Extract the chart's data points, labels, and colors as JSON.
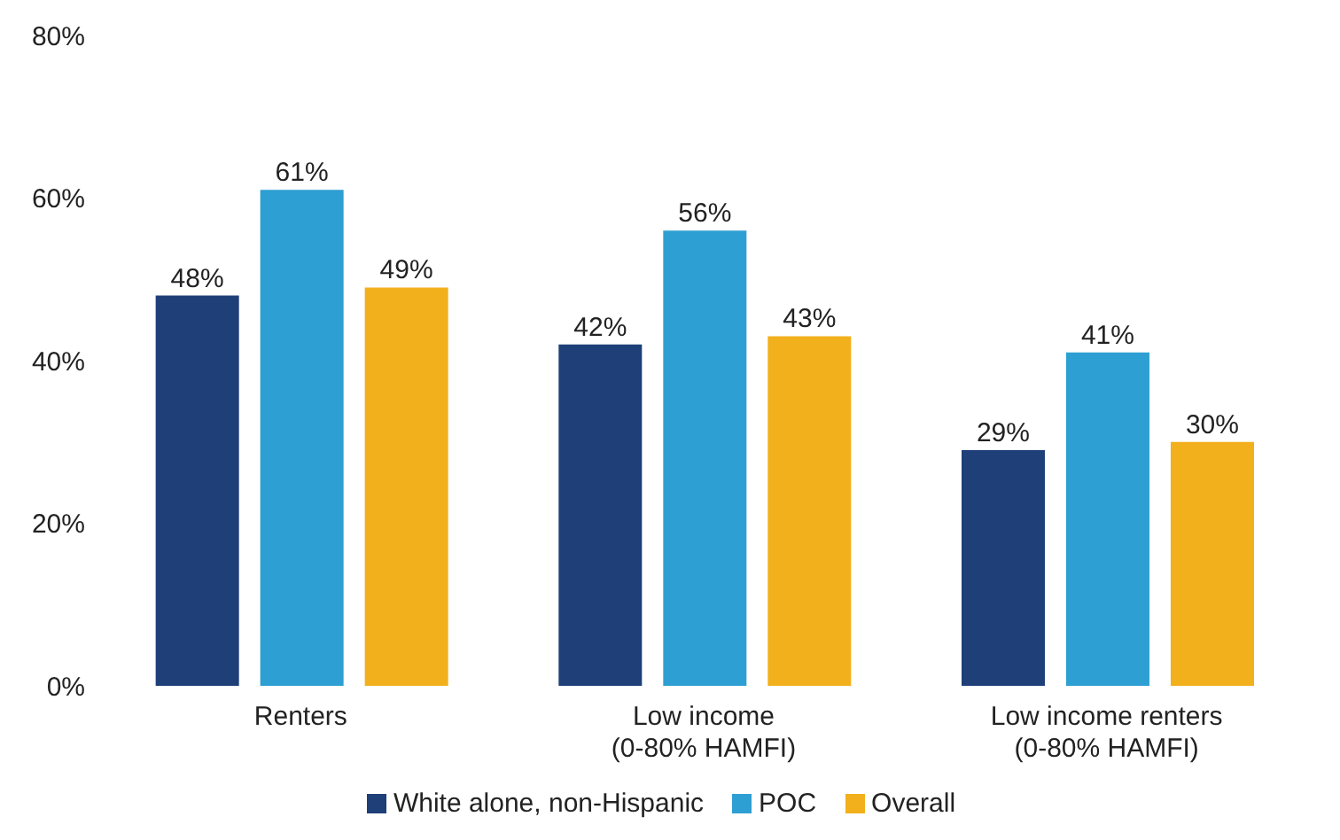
{
  "chart_data": {
    "type": "bar",
    "categories": [
      "Renters",
      "Low income\n(0-80% HAMFI)",
      "Low income renters\n(0-80% HAMFI)"
    ],
    "series": [
      {
        "name": "White alone, non-Hispanic",
        "color": "#1e3f78",
        "values": [
          48,
          42,
          29
        ],
        "value_labels": [
          "48%",
          "42%",
          "29%"
        ]
      },
      {
        "name": "POC",
        "color": "#2e9fd2",
        "values": [
          61,
          56,
          41
        ],
        "value_labels": [
          "61%",
          "56%",
          "41%"
        ]
      },
      {
        "name": "Overall",
        "color": "#f2b01c",
        "values": [
          49,
          43,
          30
        ],
        "value_labels": [
          "49%",
          "43%",
          "30%"
        ]
      }
    ],
    "ylim": [
      0,
      80
    ],
    "yticks": [
      {
        "value": 0,
        "label": "0%"
      },
      {
        "value": 20,
        "label": "20%"
      },
      {
        "value": 40,
        "label": "40%"
      },
      {
        "value": 60,
        "label": "60%"
      },
      {
        "value": 80,
        "label": "80%"
      }
    ],
    "grid": false,
    "legend": "bottom"
  }
}
